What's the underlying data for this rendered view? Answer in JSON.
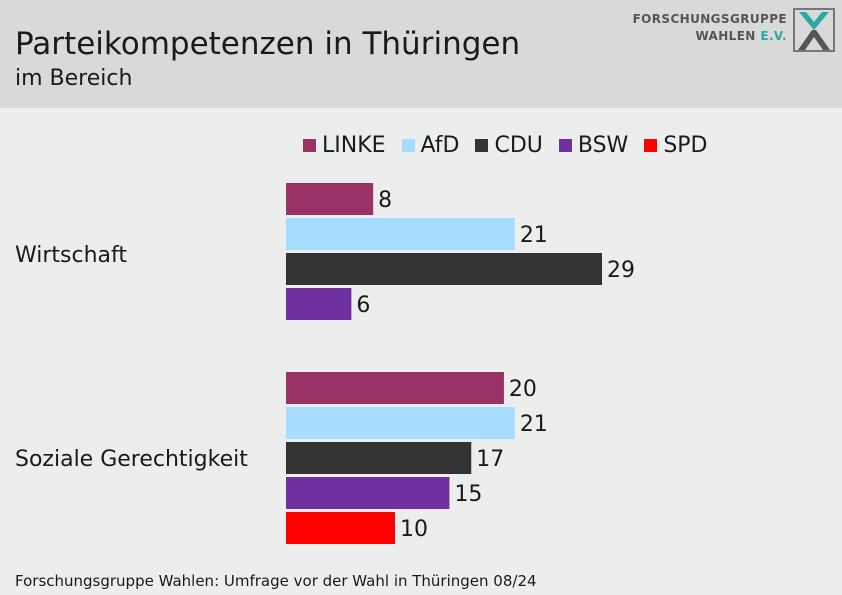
{
  "header": {
    "title": "Parteikompetenzen in Thüringen",
    "subtitle": "im Bereich",
    "logo_line1": "FORSCHUNGSGRUPPE",
    "logo_line2_main": "WAHLEN",
    "logo_line2_accent": "E.V."
  },
  "footer": {
    "source": "Forschungsgruppe Wahlen: Umfrage vor der Wahl in Thüringen 08/24"
  },
  "colors": {
    "LINKE": "#993366",
    "AfD": "#a6dcff",
    "CDU": "#333333",
    "BSW": "#7030a0",
    "SPD": "#ff0000",
    "header_bg": "#d9d9d9",
    "background": "#ebeeed"
  },
  "chart_data": {
    "type": "bar",
    "orientation": "horizontal",
    "title": "Parteikompetenzen in Thüringen",
    "subtitle": "im Bereich",
    "legend": [
      "LINKE",
      "AfD",
      "CDU",
      "BSW",
      "SPD"
    ],
    "legend_position": "top",
    "grid": false,
    "xlim": [
      0,
      29
    ],
    "categories": [
      {
        "label": "Wirtschaft",
        "bars": [
          {
            "party": "LINKE",
            "value": 8,
            "label": "8"
          },
          {
            "party": "AfD",
            "value": 21,
            "label": "21"
          },
          {
            "party": "CDU",
            "value": 29,
            "label": "29"
          },
          {
            "party": "BSW",
            "value": 6,
            "label": "6"
          }
        ]
      },
      {
        "label": "Soziale Gerechtigkeit",
        "bars": [
          {
            "party": "LINKE",
            "value": 20,
            "label": "20"
          },
          {
            "party": "AfD",
            "value": 21,
            "label": "21"
          },
          {
            "party": "CDU",
            "value": 17,
            "label": "17"
          },
          {
            "party": "BSW",
            "value": 15,
            "label": "15"
          },
          {
            "party": "SPD",
            "value": 10,
            "label": "10"
          }
        ]
      }
    ]
  }
}
